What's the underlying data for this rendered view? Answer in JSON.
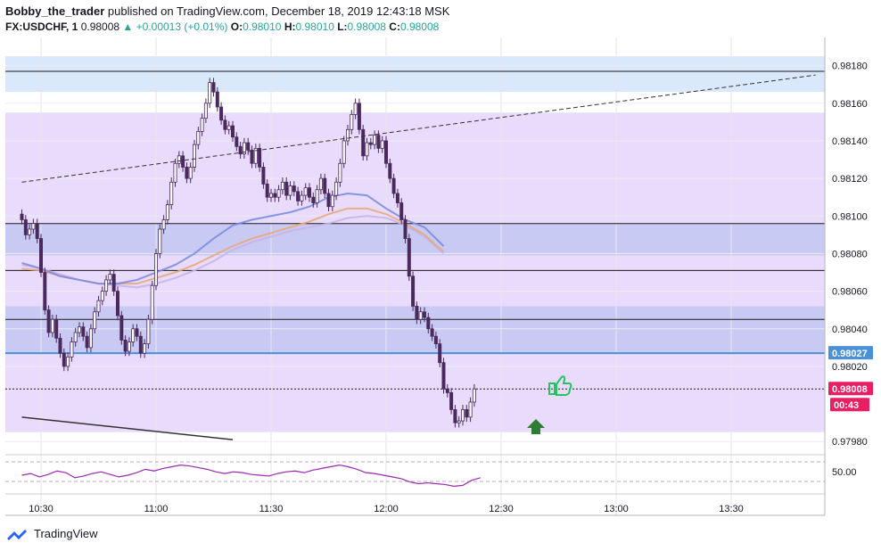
{
  "header": {
    "author": "Bobby_the_trader",
    "published": "published on TradingView.com, December 18, 2019 12:43:18 MSK",
    "symbol": "FX:USDCHF, 1",
    "last": "0.98008",
    "change": "▲ +0.00013 (+0.01%)",
    "o_label": "O:",
    "o": "0.98010",
    "h_label": "H:",
    "h": "0.98010",
    "l_label": "L:",
    "l": "0.98008",
    "c_label": "C:",
    "c": "0.98008"
  },
  "footer": {
    "brand": "TradingView"
  },
  "colors": {
    "up": "#26a69a",
    "down": "#5d3a6e",
    "candle": "#4a2a5e",
    "price_tag": "#4a90d9",
    "last_tag": "#e91e63",
    "rsi": "#9c27b0",
    "ema_fast": "#7b8ce0",
    "ema_slow": "#e8a87c",
    "ema_mid": "#c9b3e8",
    "zone_purple": "#e7d7fb",
    "zone_blue": "#c5c8f2",
    "zone_top": "#d6e6fb"
  },
  "chart_data": {
    "type": "candlestick",
    "ylim": [
      0.97973,
      0.98195
    ],
    "y_ticks": [
      "0.98180",
      "0.98160",
      "0.98140",
      "0.98120",
      "0.98100",
      "0.98080",
      "0.98060",
      "0.98040",
      "0.98020",
      "0.97980"
    ],
    "x_ticks": [
      "10:30",
      "11:00",
      "11:30",
      "12:00",
      "12:30",
      "13:00",
      "13:30"
    ],
    "price_labels": [
      {
        "value": "0.98027",
        "kind": "level"
      },
      {
        "value": "0.98008",
        "kind": "last"
      },
      {
        "value": "00:43",
        "kind": "countdown"
      }
    ],
    "levels": [
      0.98177,
      0.98096,
      0.98071,
      0.98045,
      0.98027,
      0.98008
    ],
    "zones": [
      {
        "from": 0.98185,
        "to": 0.98166,
        "color": "zone_top"
      },
      {
        "from": 0.98155,
        "to": 0.97985,
        "color": "zone_purple"
      },
      {
        "from": 0.98096,
        "to": 0.98079,
        "color": "zone_blue"
      },
      {
        "from": 0.98052,
        "to": 0.98027,
        "color": "zone_blue"
      }
    ],
    "trendlines": [
      {
        "x": [
          "10:25",
          "13:52"
        ],
        "y": [
          0.98118,
          0.98175
        ],
        "style": "dashed"
      },
      {
        "x": [
          "10:25",
          "11:20"
        ],
        "y": [
          0.97993,
          0.97981
        ],
        "style": "solid"
      }
    ],
    "candles_start": "10:25",
    "candles_interval_min": 1,
    "closes": [
      0.98098,
      0.9809,
      0.98093,
      0.98096,
      0.98088,
      0.9807,
      0.9805,
      0.98038,
      0.98045,
      0.98035,
      0.98027,
      0.9802,
      0.98025,
      0.98033,
      0.98038,
      0.98041,
      0.98036,
      0.9803,
      0.9804,
      0.98049,
      0.98055,
      0.9806,
      0.98066,
      0.98069,
      0.9806,
      0.98047,
      0.98034,
      0.98028,
      0.98033,
      0.9804,
      0.98036,
      0.98027,
      0.98032,
      0.98045,
      0.98063,
      0.9808,
      0.98093,
      0.98098,
      0.98106,
      0.98118,
      0.98128,
      0.98132,
      0.98126,
      0.9812,
      0.98126,
      0.98138,
      0.98145,
      0.98152,
      0.9816,
      0.98171,
      0.98166,
      0.98158,
      0.98151,
      0.98146,
      0.98148,
      0.98142,
      0.98137,
      0.98133,
      0.98139,
      0.98135,
      0.98128,
      0.98136,
      0.98126,
      0.98117,
      0.9811,
      0.98112,
      0.9811,
      0.98114,
      0.98118,
      0.98111,
      0.98116,
      0.98113,
      0.98108,
      0.98111,
      0.98115,
      0.9811,
      0.98107,
      0.98114,
      0.9812,
      0.98112,
      0.98105,
      0.98111,
      0.98118,
      0.98128,
      0.9814,
      0.98146,
      0.98154,
      0.9816,
      0.98146,
      0.98132,
      0.98139,
      0.98138,
      0.98143,
      0.98136,
      0.9814,
      0.98128,
      0.9812,
      0.98112,
      0.98107,
      0.98098,
      0.98088,
      0.98068,
      0.98052,
      0.98045,
      0.98049,
      0.98046,
      0.9804,
      0.98036,
      0.98032,
      0.98022,
      0.98008,
      0.98006,
      0.97997,
      0.9799,
      0.97991,
      0.97997,
      0.97993,
      0.98001,
      0.98008
    ],
    "ema_fast": {
      "start": "10:25",
      "values": [
        0.98075,
        0.98072,
        0.98068,
        0.98066,
        0.98064,
        0.98064,
        0.98066,
        0.9807,
        0.98074,
        0.9808,
        0.98088,
        0.98095,
        0.98098,
        0.981,
        0.98102,
        0.98105,
        0.9811,
        0.98112,
        0.98111,
        0.98104,
        0.98098,
        0.98094,
        0.98084
      ]
    },
    "ema_slow": {
      "start": "10:25",
      "values": [
        0.98072,
        0.98071,
        0.98068,
        0.98066,
        0.98064,
        0.98064,
        0.98064,
        0.98067,
        0.9807,
        0.98074,
        0.98079,
        0.98084,
        0.98088,
        0.98091,
        0.98094,
        0.98097,
        0.98101,
        0.98104,
        0.98104,
        0.98101,
        0.98096,
        0.9809,
        0.98081
      ]
    },
    "ema_mid": {
      "start": "10:25",
      "values": [
        0.98074,
        0.98072,
        0.98069,
        0.98066,
        0.98064,
        0.98063,
        0.98062,
        0.98064,
        0.98067,
        0.98071,
        0.98076,
        0.98082,
        0.98086,
        0.98089,
        0.98092,
        0.98094,
        0.98096,
        0.98099,
        0.981,
        0.98099,
        0.98095,
        0.98089,
        0.9808
      ]
    },
    "rsi": {
      "label": "50.00",
      "values": [
        50,
        52,
        48,
        51,
        55,
        53,
        47,
        49,
        52,
        54,
        51,
        48,
        50,
        53,
        57,
        55,
        58,
        60,
        62,
        61,
        59,
        57,
        54,
        52,
        54,
        53,
        51,
        50,
        49,
        52,
        54,
        55,
        53,
        56,
        58,
        60,
        62,
        60,
        57,
        53,
        52,
        50,
        48,
        46,
        42,
        40,
        41,
        40,
        39,
        37,
        38,
        44,
        47
      ]
    }
  }
}
